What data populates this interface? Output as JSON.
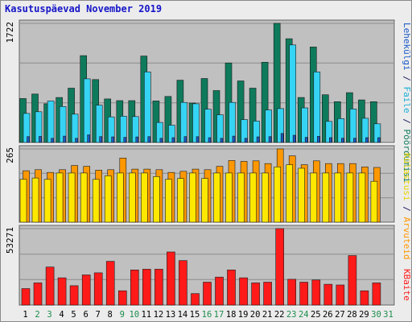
{
  "chart_title": "Kasutuspäevad November 2019",
  "colors": {
    "background": "#ececec",
    "plot_background": "#c0c0c0",
    "grid": "#8c8c8c",
    "title": "#1515c8",
    "hits": "#0e7a5c",
    "files": "#36d4f4",
    "pages": "#1a5ac8",
    "visits": "#ff9800",
    "sites": "#ffe800",
    "kbytes": "#ff1a1a",
    "weekday_label": "#000000",
    "weekend_label": "#1c8c4c"
  },
  "legend": {
    "hits": "Pöördumisi",
    "files": "Faile",
    "pages": "Lehekülgi",
    "visits": "Arvuteid",
    "sites": "Külastusi",
    "kbytes": "KBaite",
    "separator": "/"
  },
  "chart_data": [
    {
      "type": "bar",
      "panel": "requests",
      "categories": [
        "1",
        "2",
        "3",
        "4",
        "5",
        "6",
        "7",
        "8",
        "9",
        "10",
        "11",
        "12",
        "13",
        "14",
        "15",
        "16",
        "17",
        "18",
        "19",
        "20",
        "21",
        "22",
        "23",
        "24",
        "25",
        "26",
        "27",
        "28",
        "29",
        "30",
        "31"
      ],
      "weekend_days": [
        "2",
        "3",
        "9",
        "10",
        "16",
        "17",
        "23",
        "24",
        "30",
        "31"
      ],
      "ylim": [
        0,
        1722
      ],
      "y_tick_label": "1722",
      "series": [
        {
          "name": "Pöördumisi",
          "values": [
            635,
            700,
            560,
            650,
            785,
            1255,
            910,
            630,
            605,
            605,
            1250,
            600,
            665,
            900,
            570,
            925,
            750,
            1150,
            890,
            785,
            1160,
            1722,
            1500,
            650,
            1380,
            690,
            590,
            720,
            615,
            590,
            0
          ]
        },
        {
          "name": "Faile",
          "values": [
            420,
            445,
            600,
            520,
            410,
            920,
            540,
            370,
            380,
            375,
            1020,
            290,
            250,
            580,
            560,
            480,
            400,
            580,
            330,
            310,
            470,
            490,
            1410,
            500,
            1020,
            305,
            345,
            485,
            350,
            270,
            0
          ]
        },
        {
          "name": "Lehekülgi",
          "values": [
            85,
            88,
            60,
            92,
            60,
            110,
            85,
            82,
            75,
            80,
            85,
            60,
            70,
            85,
            84,
            70,
            60,
            92,
            60,
            82,
            85,
            130,
            105,
            75,
            88,
            70,
            62,
            62,
            70,
            70,
            0
          ]
        }
      ]
    },
    {
      "type": "bar",
      "panel": "visits",
      "categories": [
        "1",
        "2",
        "3",
        "4",
        "5",
        "6",
        "7",
        "8",
        "9",
        "10",
        "11",
        "12",
        "13",
        "14",
        "15",
        "16",
        "17",
        "18",
        "19",
        "20",
        "21",
        "22",
        "23",
        "24",
        "25",
        "26",
        "27",
        "28",
        "29",
        "30",
        "31"
      ],
      "ylim": [
        0,
        265
      ],
      "y_tick_label": "265",
      "series": [
        {
          "name": "Arvuteid",
          "values": [
            186,
            190,
            180,
            190,
            205,
            202,
            188,
            190,
            232,
            192,
            192,
            190,
            180,
            184,
            192,
            190,
            202,
            223,
            220,
            222,
            212,
            265,
            240,
            208,
            222,
            212,
            212,
            212,
            200,
            198,
            0
          ]
        },
        {
          "name": "Külastusi",
          "values": [
            155,
            160,
            155,
            178,
            178,
            178,
            155,
            168,
            178,
            178,
            178,
            165,
            155,
            158,
            178,
            158,
            178,
            178,
            178,
            178,
            178,
            200,
            208,
            195,
            178,
            178,
            178,
            178,
            178,
            148,
            0
          ]
        }
      ]
    },
    {
      "type": "bar",
      "panel": "kbytes",
      "categories": [
        "1",
        "2",
        "3",
        "4",
        "5",
        "6",
        "7",
        "8",
        "9",
        "10",
        "11",
        "12",
        "13",
        "14",
        "15",
        "16",
        "17",
        "18",
        "19",
        "20",
        "21",
        "22",
        "23",
        "24",
        "25",
        "26",
        "27",
        "28",
        "29",
        "30",
        "31"
      ],
      "ylim": [
        0,
        53271
      ],
      "y_tick_label": "53271",
      "series": [
        {
          "name": "KBaite",
          "values": [
            11500,
            15500,
            26500,
            19000,
            13500,
            21000,
            22500,
            30500,
            10000,
            24500,
            25000,
            25000,
            37000,
            31000,
            8000,
            16000,
            19500,
            24500,
            19000,
            15500,
            16000,
            53271,
            18000,
            16000,
            17500,
            14500,
            14000,
            34500,
            10000,
            15500,
            0
          ]
        }
      ]
    }
  ]
}
